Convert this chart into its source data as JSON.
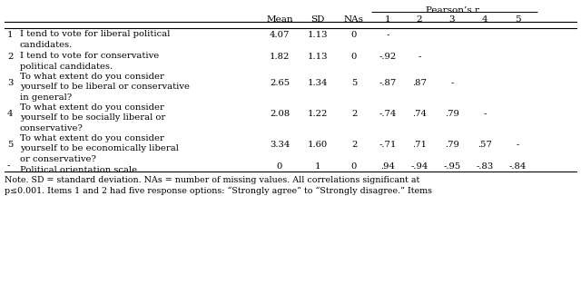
{
  "title": "Pearson’s r",
  "rows": [
    {
      "num": "1",
      "text_lines": [
        "I tend to vote for liberal political",
        "candidates."
      ],
      "mean": "4.07",
      "sd": "1.13",
      "nas": "0",
      "r": [
        "-",
        "",
        "",
        "",
        ""
      ]
    },
    {
      "num": "2",
      "text_lines": [
        "I tend to vote for conservative",
        "political candidates."
      ],
      "mean": "1.82",
      "sd": "1.13",
      "nas": "0",
      "r": [
        "-.92",
        "-",
        "",
        "",
        ""
      ]
    },
    {
      "num": "3",
      "text_lines": [
        "To what extent do you consider",
        "yourself to be liberal or conservative",
        "in general?"
      ],
      "mean": "2.65",
      "sd": "1.34",
      "nas": "5",
      "r": [
        "-.87",
        ".87",
        "-",
        "",
        ""
      ]
    },
    {
      "num": "4",
      "text_lines": [
        "To what extent do you consider",
        "yourself to be socially liberal or",
        "conservative?"
      ],
      "mean": "2.08",
      "sd": "1.22",
      "nas": "2",
      "r": [
        "-.74",
        ".74",
        ".79",
        "-",
        ""
      ]
    },
    {
      "num": "5",
      "text_lines": [
        "To what extent do you consider",
        "yourself to be economically liberal",
        "or conservative?"
      ],
      "mean": "3.34",
      "sd": "1.60",
      "nas": "2",
      "r": [
        "-.71",
        ".71",
        ".79",
        ".57",
        "-"
      ]
    },
    {
      "num": "-",
      "text_lines": [
        "Political orientation scale"
      ],
      "mean": "0",
      "sd": "1",
      "nas": "0",
      "r": [
        ".94",
        "-.94",
        "-.95",
        "-.83",
        "-.84"
      ]
    }
  ],
  "note_lines": [
    "Note. SD = standard deviation. NAs = number of missing values. All correlations significant at",
    "p≤0.001. Items 1 and 2 had five response options: “Strongly agree” to “Strongly disagree.” Items"
  ],
  "background": "#ffffff",
  "text_color": "#000000",
  "font_size": 7.2,
  "note_font_size": 6.8
}
